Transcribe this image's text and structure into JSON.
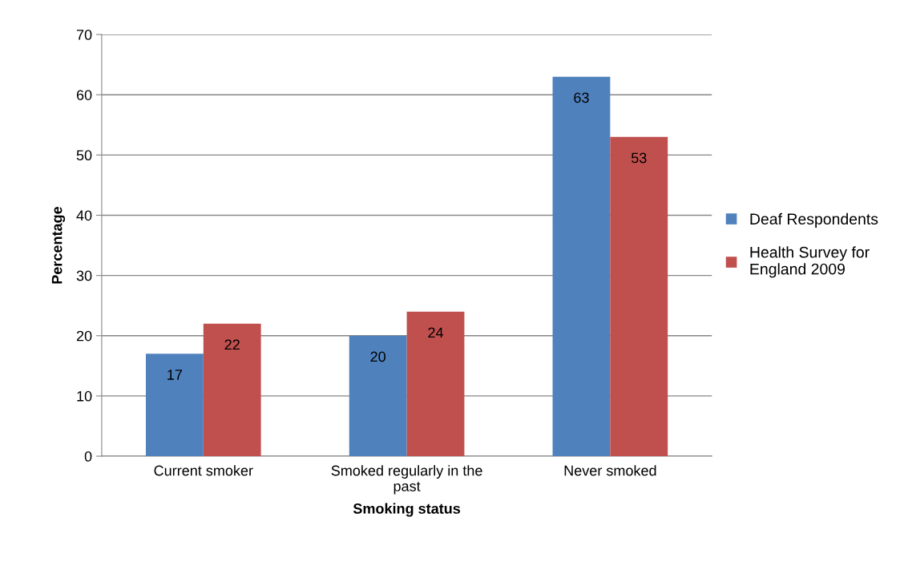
{
  "chart_data": {
    "type": "bar",
    "xlabel": "Smoking status",
    "ylabel": "Percentage",
    "categories": [
      "Current smoker",
      "Smoked regularly in the past",
      "Never smoked"
    ],
    "series": [
      {
        "name": "Deaf Respondents",
        "color": "#4f81bd",
        "values": [
          17,
          20,
          63
        ]
      },
      {
        "name": "Health Survey for England 2009",
        "color": "#c0504d",
        "values": [
          22,
          24,
          53
        ]
      }
    ],
    "ylim": [
      0,
      70
    ],
    "yticks": [
      0,
      10,
      20,
      30,
      40,
      50,
      60,
      70
    ],
    "grid": "y",
    "legend": "right",
    "data_labels": true
  }
}
